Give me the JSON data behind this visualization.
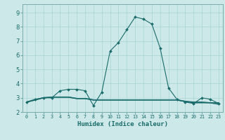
{
  "title": "",
  "xlabel": "Humidex (Indice chaleur)",
  "bg_color": "#cce8e8",
  "line_color": "#1a6b6b",
  "grid_color": "#a8d4d4",
  "xlim": [
    -0.5,
    23.5
  ],
  "ylim": [
    2.0,
    9.6
  ],
  "yticks": [
    2,
    3,
    4,
    5,
    6,
    7,
    8,
    9
  ],
  "xtick_labels": [
    "0",
    "1",
    "2",
    "3",
    "4",
    "5",
    "6",
    "7",
    "8",
    "9",
    "10",
    "11",
    "12",
    "13",
    "14",
    "15",
    "16",
    "17",
    "18",
    "19",
    "20",
    "21",
    "22",
    "23"
  ],
  "line1_x": [
    0,
    1,
    2,
    3,
    4,
    5,
    6,
    7,
    8,
    9,
    10,
    11,
    12,
    13,
    14,
    15,
    16,
    17,
    18,
    19,
    20,
    21,
    22,
    23
  ],
  "line1_y": [
    2.7,
    2.9,
    3.0,
    3.0,
    3.5,
    3.6,
    3.6,
    3.5,
    2.45,
    3.4,
    6.3,
    6.9,
    7.8,
    8.7,
    8.55,
    8.2,
    6.5,
    3.7,
    2.9,
    2.7,
    2.6,
    3.0,
    2.9,
    2.6
  ],
  "line2_x": [
    0,
    1,
    2,
    3,
    4,
    5,
    6,
    7,
    8,
    9,
    10,
    11,
    12,
    13,
    14,
    15,
    16,
    17,
    18,
    19,
    20,
    21,
    22,
    23
  ],
  "line2_y": [
    2.7,
    2.85,
    3.0,
    3.05,
    3.05,
    3.05,
    2.95,
    2.95,
    2.85,
    2.85,
    2.85,
    2.85,
    2.85,
    2.85,
    2.85,
    2.85,
    2.85,
    2.85,
    2.85,
    2.75,
    2.65,
    2.65,
    2.65,
    2.65
  ],
  "line3_x": [
    0,
    1,
    2,
    3,
    4,
    5,
    6,
    7,
    8,
    9,
    10,
    11,
    12,
    13,
    14,
    15,
    16,
    17,
    18,
    19,
    20,
    21,
    22,
    23
  ],
  "line3_y": [
    2.7,
    2.85,
    3.0,
    3.05,
    3.05,
    3.05,
    2.95,
    2.95,
    2.85,
    2.85,
    2.85,
    2.85,
    2.85,
    2.85,
    2.85,
    2.85,
    2.85,
    2.85,
    2.85,
    2.75,
    2.7,
    2.7,
    2.65,
    2.55
  ]
}
